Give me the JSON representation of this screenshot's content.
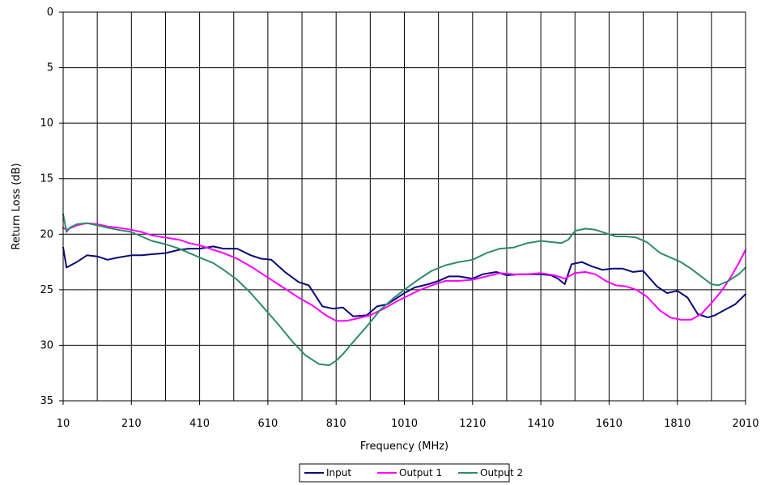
{
  "chart_data": {
    "type": "line",
    "xlabel": "Frequency (MHz)",
    "ylabel": "Return Loss (dB)",
    "xlim": [
      10,
      2010
    ],
    "ylim": [
      0,
      35
    ],
    "y_inverted": true,
    "grid": true,
    "legend_position": "bottom",
    "x_ticks": [
      "10",
      "210",
      "410",
      "610",
      "810",
      "1010",
      "1210",
      "1410",
      "1610",
      "1810",
      "2010"
    ],
    "y_ticks": [
      "0",
      "5",
      "10",
      "15",
      "20",
      "25",
      "30",
      "35"
    ],
    "series": [
      {
        "name": "Input",
        "color": "#0a0a7a",
        "x": [
          10,
          20,
          50,
          80,
          110,
          140,
          170,
          210,
          240,
          270,
          310,
          350,
          380,
          410,
          450,
          480,
          520,
          560,
          590,
          620,
          660,
          700,
          730,
          770,
          800,
          830,
          860,
          900,
          930,
          960,
          990,
          1010,
          1040,
          1080,
          1110,
          1140,
          1170,
          1210,
          1240,
          1280,
          1310,
          1350,
          1380,
          1410,
          1440,
          1460,
          1480,
          1500,
          1530,
          1560,
          1590,
          1620,
          1650,
          1680,
          1710,
          1750,
          1780,
          1810,
          1840,
          1870,
          1900,
          1920,
          1950,
          1980,
          2010
        ],
        "values": [
          21.2,
          23.0,
          22.5,
          21.9,
          22.0,
          22.3,
          22.1,
          21.9,
          21.9,
          21.8,
          21.7,
          21.4,
          21.3,
          21.3,
          21.1,
          21.3,
          21.3,
          21.9,
          22.2,
          22.3,
          23.4,
          24.3,
          24.6,
          26.5,
          26.7,
          26.6,
          27.4,
          27.3,
          26.5,
          26.3,
          25.7,
          25.3,
          24.8,
          24.5,
          24.2,
          23.8,
          23.8,
          24.0,
          23.6,
          23.4,
          23.7,
          23.6,
          23.6,
          23.6,
          23.7,
          24.0,
          24.5,
          22.7,
          22.5,
          22.9,
          23.2,
          23.1,
          23.1,
          23.4,
          23.3,
          24.7,
          25.3,
          25.1,
          25.7,
          27.2,
          27.5,
          27.3,
          26.8,
          26.3,
          25.4
        ]
      },
      {
        "name": "Output 1",
        "color": "#ff00ff",
        "x": [
          10,
          20,
          50,
          80,
          110,
          140,
          170,
          210,
          240,
          270,
          310,
          350,
          380,
          410,
          450,
          480,
          520,
          560,
          590,
          620,
          660,
          700,
          740,
          780,
          810,
          840,
          870,
          910,
          950,
          990,
          1010,
          1050,
          1090,
          1130,
          1170,
          1210,
          1250,
          1290,
          1330,
          1370,
          1410,
          1450,
          1480,
          1510,
          1540,
          1570,
          1600,
          1630,
          1660,
          1690,
          1720,
          1760,
          1790,
          1820,
          1850,
          1880,
          1910,
          1940,
          1970,
          1990,
          2010
        ],
        "values": [
          19.4,
          19.6,
          19.2,
          19.0,
          19.1,
          19.3,
          19.4,
          19.6,
          19.8,
          20.1,
          20.3,
          20.5,
          20.8,
          21.0,
          21.4,
          21.7,
          22.2,
          22.9,
          23.5,
          24.1,
          24.9,
          25.7,
          26.4,
          27.3,
          27.8,
          27.8,
          27.6,
          27.3,
          26.7,
          26.0,
          25.7,
          25.1,
          24.6,
          24.2,
          24.2,
          24.1,
          23.8,
          23.5,
          23.6,
          23.6,
          23.5,
          23.7,
          24.0,
          23.5,
          23.4,
          23.6,
          24.2,
          24.6,
          24.7,
          25.0,
          25.6,
          26.9,
          27.5,
          27.7,
          27.7,
          27.2,
          26.2,
          25.1,
          23.7,
          22.6,
          21.4
        ]
      },
      {
        "name": "Output 2",
        "color": "#2e8b6a",
        "x": [
          10,
          20,
          30,
          50,
          80,
          110,
          140,
          170,
          210,
          240,
          270,
          310,
          350,
          380,
          410,
          450,
          480,
          520,
          560,
          600,
          640,
          680,
          720,
          760,
          790,
          810,
          830,
          860,
          900,
          940,
          980,
          1010,
          1050,
          1090,
          1130,
          1170,
          1210,
          1250,
          1290,
          1330,
          1370,
          1410,
          1440,
          1470,
          1490,
          1510,
          1540,
          1570,
          1600,
          1630,
          1660,
          1690,
          1720,
          1760,
          1790,
          1820,
          1850,
          1880,
          1910,
          1930,
          1960,
          1990,
          2010
        ],
        "values": [
          18.2,
          19.8,
          19.4,
          19.1,
          19.0,
          19.2,
          19.4,
          19.6,
          19.8,
          20.2,
          20.6,
          20.9,
          21.3,
          21.7,
          22.1,
          22.6,
          23.2,
          24.1,
          25.3,
          26.7,
          28.1,
          29.6,
          30.9,
          31.7,
          31.8,
          31.4,
          30.8,
          29.7,
          28.3,
          26.8,
          25.7,
          25.0,
          24.1,
          23.3,
          22.8,
          22.5,
          22.3,
          21.7,
          21.3,
          21.2,
          20.8,
          20.6,
          20.7,
          20.8,
          20.5,
          19.7,
          19.5,
          19.6,
          19.9,
          20.2,
          20.2,
          20.3,
          20.7,
          21.7,
          22.1,
          22.5,
          23.1,
          23.8,
          24.5,
          24.6,
          24.2,
          23.6,
          23.0
        ]
      }
    ]
  }
}
